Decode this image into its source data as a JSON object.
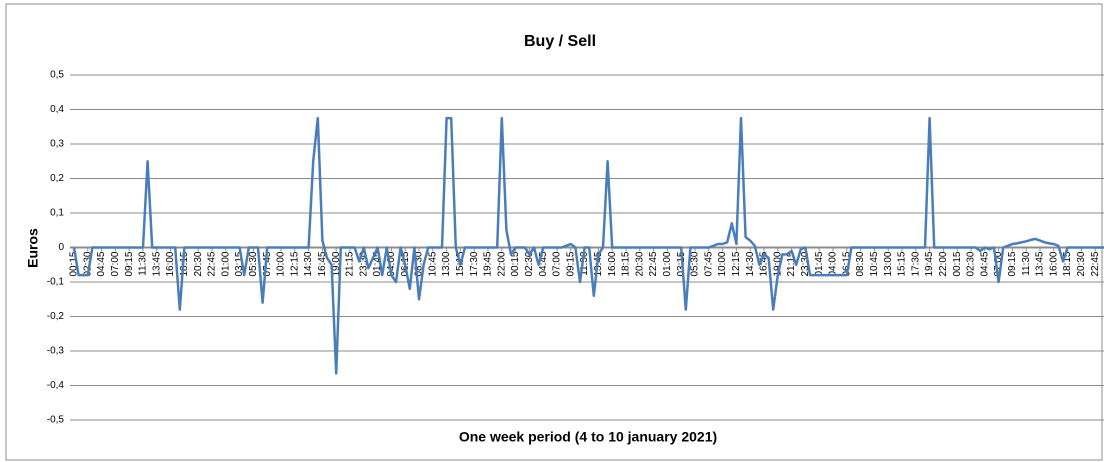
{
  "chart_data": {
    "type": "line",
    "title": "Buy / Sell",
    "y_label": "Euros",
    "x_label": "One week period (4 to 10 january 2021)",
    "categories": [
      "00:15",
      null,
      null,
      "02:30",
      null,
      null,
      "04:45",
      null,
      null,
      "07:00",
      null,
      null,
      "09:15",
      null,
      null,
      "11:30",
      null,
      null,
      "13:45",
      null,
      null,
      "16:00",
      null,
      null,
      "18:15",
      null,
      null,
      "20:30",
      null,
      null,
      "22:45",
      null,
      null,
      "01:00",
      null,
      null,
      "03:15",
      null,
      null,
      "05:30",
      null,
      null,
      "07:45",
      null,
      null,
      "10:00",
      null,
      null,
      "12:15",
      null,
      null,
      "14:30",
      null,
      null,
      "16:45",
      null,
      null,
      "19:00",
      null,
      null,
      "21:15",
      null,
      null,
      "23:30",
      null,
      null,
      "01:45",
      null,
      null,
      "04:00",
      null,
      null,
      "06:15",
      null,
      null,
      "08:30",
      null,
      null,
      "10:45",
      null,
      null,
      "13:00",
      null,
      null,
      "15:15",
      null,
      null,
      "17:30",
      null,
      null,
      "19:45",
      null,
      null,
      "22:00",
      null,
      null,
      "00:15",
      null,
      null,
      "02:30",
      null,
      null,
      "04:45",
      null,
      null,
      "07:00",
      null,
      null,
      "09:15",
      null,
      null,
      "11:30",
      null,
      null,
      "13:45",
      null,
      null,
      "16:00",
      null,
      null,
      "18:15",
      null,
      null,
      "20:30",
      null,
      null,
      "22:45",
      null,
      null,
      "01:00",
      null,
      null,
      "03:15",
      null,
      null,
      "05:30",
      null,
      null,
      "07:45",
      null,
      null,
      "10:00",
      null,
      null,
      "12:15",
      null,
      null,
      "14:30",
      null,
      null,
      "16:45",
      null,
      null,
      "19:00",
      null,
      null,
      "21:15",
      null,
      null,
      "23:30",
      null,
      null,
      "01:45",
      null,
      null,
      "04:00",
      null,
      null,
      "06:15",
      null,
      null,
      "08:30",
      null,
      null,
      "10:45",
      null,
      null,
      "13:00",
      null,
      null,
      "15:15",
      null,
      null,
      "17:30",
      null,
      null,
      "19:45",
      null,
      null,
      "22:00",
      null,
      null,
      "00:15",
      null,
      null,
      "02:30",
      null,
      null,
      "04:45",
      null,
      null,
      "07:00",
      null,
      null,
      "09:15",
      null,
      null,
      "11:30",
      null,
      null,
      "13:45",
      null,
      null,
      "16:00",
      null,
      null,
      "18:15",
      null,
      null,
      "20:30",
      null,
      null,
      "22:45",
      null,
      null
    ],
    "series": [
      {
        "name": "Buy / Sell",
        "color": "#4a7ebb",
        "values": [
          0,
          -0.08,
          -0.08,
          -0.08,
          0,
          0,
          0,
          0,
          0,
          0,
          0,
          0,
          0,
          0,
          0,
          0,
          0.25,
          0,
          0,
          0,
          0,
          0,
          0,
          -0.18,
          0,
          0,
          0,
          0,
          0,
          0,
          0,
          0,
          0,
          0,
          0,
          0,
          0,
          -0.08,
          0,
          0,
          0,
          -0.16,
          0,
          0,
          0,
          0,
          0,
          0,
          0,
          0,
          0,
          0,
          0.25,
          0.375,
          0.02,
          -0.03,
          -0.05,
          -0.365,
          0,
          0,
          0,
          0,
          -0.04,
          0,
          -0.06,
          -0.03,
          0,
          -0.08,
          0,
          -0.08,
          -0.1,
          0,
          -0.05,
          -0.12,
          0,
          -0.15,
          -0.05,
          0,
          0,
          0,
          0,
          0.375,
          0.375,
          0,
          -0.05,
          0,
          0,
          0,
          0,
          0,
          0,
          0,
          0,
          0.375,
          0.05,
          -0.02,
          0,
          0,
          0,
          -0.02,
          0,
          -0.05,
          0,
          0,
          0,
          0,
          0,
          0.005,
          0.01,
          0,
          -0.1,
          0,
          0,
          -0.14,
          -0.02,
          0,
          0.25,
          0,
          0,
          0,
          0,
          0,
          0,
          0,
          0,
          0,
          0,
          0,
          0,
          0,
          0,
          0,
          0,
          -0.18,
          0,
          0,
          0,
          0,
          0,
          0.005,
          0.01,
          0.01,
          0.015,
          0.07,
          0.01,
          0.375,
          0.03,
          0.02,
          0.005,
          -0.05,
          -0.02,
          -0.03,
          -0.18,
          -0.08,
          -0.02,
          -0.02,
          -0.01,
          -0.05,
          -0.005,
          0,
          -0.08,
          -0.08,
          -0.08,
          -0.08,
          -0.08,
          -0.08,
          -0.08,
          -0.08,
          -0.08,
          0,
          0,
          0,
          0,
          0,
          0,
          0,
          0,
          0,
          0,
          0,
          0,
          0,
          0,
          0,
          0,
          0,
          0.375,
          0,
          0,
          0,
          0,
          0,
          0,
          0,
          0,
          0,
          0,
          -0.01,
          0,
          -0.005,
          0,
          -0.1,
          0,
          0.005,
          0.01,
          0.012,
          0.015,
          0.018,
          0.022,
          0.025,
          0.02,
          0.015,
          0.012,
          0.01,
          0.005,
          -0.04,
          0,
          0,
          0,
          0,
          0,
          0,
          0,
          0,
          0
        ]
      }
    ],
    "ylim": [
      -0.5,
      0.5
    ],
    "yticks": [
      {
        "value": -0.5,
        "label": "-0,5"
      },
      {
        "value": -0.4,
        "label": "-0,4"
      },
      {
        "value": -0.3,
        "label": "-0,3"
      },
      {
        "value": -0.2,
        "label": "-0,2"
      },
      {
        "value": -0.1,
        "label": "-0,1"
      },
      0,
      {
        "value": 0.1,
        "label": "0,1"
      },
      {
        "value": 0.2,
        "label": "0,2"
      },
      {
        "value": 0.3,
        "label": "0,3"
      },
      {
        "value": 0.4,
        "label": "0,4"
      },
      {
        "value": 0.5,
        "label": "0,5"
      }
    ],
    "grid": true
  }
}
